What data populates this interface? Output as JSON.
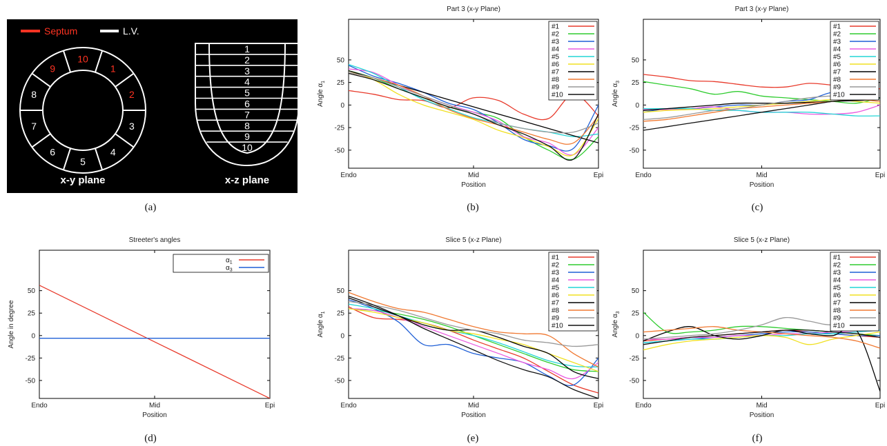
{
  "diagram": {
    "legend_septum": "Septum",
    "legend_lv": "L.V.",
    "xy_label": "x-y plane",
    "xz_label": "x-z plane",
    "ring_numbers": [
      "1",
      "2",
      "3",
      "4",
      "5",
      "6",
      "7",
      "8",
      "9",
      "10"
    ],
    "slice_numbers": [
      "1",
      "2",
      "3",
      "4",
      "5",
      "6",
      "7",
      "8",
      "9",
      "10"
    ],
    "septum_color": "#ff3322",
    "lv_color": "#ffffff"
  },
  "captions": [
    "(a)",
    "(b)",
    "(c)",
    "(d)",
    "(e)",
    "(f)"
  ],
  "colors": {
    "#1": "#e8392a",
    "#2": "#2ecc2e",
    "#3": "#1f5fd6",
    "#4": "#ea5ae0",
    "#5": "#22d6d6",
    "#6": "#f0e020",
    "#7": "#000000",
    "#8": "#f07830",
    "#9": "#999999",
    "#10": "#111111"
  },
  "chart_data": [
    {
      "id": "b",
      "type": "line",
      "title": "Part 3 (x-y Plane)",
      "xlabel": "Position",
      "ylabel": "Angle α1",
      "ylabel_main": "Angle α",
      "ylabel_sub": "1",
      "x_ticks": [
        "Endo",
        "Mid",
        "Epi"
      ],
      "y_ticks": [
        50,
        25,
        0,
        -25,
        -50
      ],
      "ylim": [
        -70,
        95
      ],
      "x": [
        0,
        0.1,
        0.2,
        0.3,
        0.4,
        0.5,
        0.6,
        0.7,
        0.8,
        0.9,
        1.0
      ],
      "series": [
        {
          "name": "#1",
          "values": [
            16,
            12,
            6,
            5,
            -3,
            8,
            5,
            -10,
            -15,
            12,
            -12
          ]
        },
        {
          "name": "#2",
          "values": [
            38,
            30,
            18,
            8,
            -2,
            -8,
            -15,
            -35,
            -50,
            -60,
            -35
          ]
        },
        {
          "name": "#3",
          "values": [
            44,
            32,
            24,
            14,
            2,
            -5,
            -20,
            -38,
            -45,
            -48,
            0
          ]
        },
        {
          "name": "#4",
          "values": [
            40,
            36,
            22,
            10,
            0,
            -8,
            -18,
            -35,
            -42,
            -55,
            -25
          ]
        },
        {
          "name": "#5",
          "values": [
            45,
            35,
            20,
            6,
            -4,
            -14,
            -20,
            -26,
            -30,
            -35,
            -32
          ]
        },
        {
          "name": "#6",
          "values": [
            38,
            28,
            12,
            0,
            -8,
            -16,
            -28,
            -36,
            -46,
            -55,
            -15
          ]
        },
        {
          "name": "#7",
          "values": [
            38,
            30,
            22,
            14,
            6,
            -2,
            -10,
            -18,
            -26,
            -34,
            -42
          ]
        },
        {
          "name": "#8",
          "values": [
            36,
            30,
            22,
            10,
            -5,
            -15,
            -22,
            -30,
            -38,
            -42,
            -12
          ]
        },
        {
          "name": "#9",
          "values": [
            36,
            30,
            20,
            10,
            0,
            -10,
            -20,
            -26,
            -30,
            -30,
            -20
          ]
        },
        {
          "name": "#10",
          "values": [
            35,
            28,
            18,
            8,
            -2,
            -10,
            -22,
            -32,
            -45,
            -60,
            -10
          ]
        }
      ],
      "legend": [
        "#1",
        "#2",
        "#3",
        "#4",
        "#5",
        "#6",
        "#7",
        "#8",
        "#9",
        "#10"
      ]
    },
    {
      "id": "c",
      "type": "line",
      "title": "Part 3 (x-y Plane)",
      "xlabel": "Position",
      "ylabel": "Angle α3",
      "ylabel_main": "Angle α",
      "ylabel_sub": "3",
      "x_ticks": [
        "Endo",
        "Mid",
        "Epi"
      ],
      "y_ticks": [
        50,
        25,
        0,
        -25,
        -50
      ],
      "ylim": [
        -70,
        95
      ],
      "x": [
        0,
        0.1,
        0.2,
        0.3,
        0.4,
        0.5,
        0.6,
        0.7,
        0.8,
        0.9,
        1.0
      ],
      "series": [
        {
          "name": "#1",
          "values": [
            34,
            31,
            27,
            26,
            23,
            20,
            20,
            24,
            22,
            20,
            18
          ]
        },
        {
          "name": "#2",
          "values": [
            26,
            22,
            18,
            12,
            15,
            10,
            8,
            6,
            4,
            2,
            8
          ]
        },
        {
          "name": "#3",
          "values": [
            -8,
            -4,
            -4,
            -2,
            0,
            0,
            4,
            6,
            14,
            10,
            8
          ]
        },
        {
          "name": "#4",
          "values": [
            -5,
            -5,
            -4,
            -2,
            -6,
            -8,
            -8,
            -10,
            -10,
            -8,
            0
          ]
        },
        {
          "name": "#5",
          "values": [
            -4,
            -4,
            -4,
            -6,
            -6,
            -8,
            -8,
            -8,
            -10,
            -12,
            -12
          ]
        },
        {
          "name": "#6",
          "values": [
            -8,
            -6,
            -5,
            -4,
            -2,
            0,
            2,
            4,
            6,
            4,
            2
          ]
        },
        {
          "name": "#7",
          "values": [
            -6,
            -4,
            -2,
            0,
            2,
            2,
            2,
            3,
            4,
            5,
            6
          ]
        },
        {
          "name": "#8",
          "values": [
            -18,
            -16,
            -12,
            -8,
            -4,
            -2,
            0,
            2,
            4,
            6,
            4
          ]
        },
        {
          "name": "#9",
          "values": [
            -16,
            -14,
            -10,
            -6,
            -4,
            0,
            4,
            8,
            10,
            8,
            6
          ]
        },
        {
          "name": "#10",
          "values": [
            -28,
            -24,
            -20,
            -16,
            -12,
            -8,
            -4,
            0,
            4,
            6,
            8
          ]
        }
      ],
      "legend": [
        "#1",
        "#2",
        "#3",
        "#4",
        "#5",
        "#6",
        "#7",
        "#8",
        "#9",
        "#10"
      ]
    },
    {
      "id": "d",
      "type": "line",
      "title": "Streeter's angles",
      "xlabel": "Position",
      "ylabel": "Angle in degree",
      "x_ticks": [
        "Endo",
        "Mid",
        "Epi"
      ],
      "y_ticks": [
        50,
        25,
        0,
        -25,
        -50
      ],
      "ylim": [
        -70,
        95
      ],
      "x": [
        0,
        1.0
      ],
      "series": [
        {
          "name": "α1",
          "values": [
            56,
            -70
          ]
        },
        {
          "name": "α3",
          "values": [
            -3,
            -3
          ]
        }
      ],
      "legend": [
        "α1",
        "α3"
      ]
    },
    {
      "id": "e",
      "type": "line",
      "title": "Slice 5 (x-z Plane)",
      "xlabel": "Position",
      "ylabel": "Angle α1",
      "ylabel_main": "Angle α",
      "ylabel_sub": "1",
      "x_ticks": [
        "Endo",
        "Mid",
        "Epi"
      ],
      "y_ticks": [
        50,
        25,
        0,
        -25,
        -50
      ],
      "ylim": [
        -70,
        95
      ],
      "x": [
        0,
        0.1,
        0.2,
        0.3,
        0.4,
        0.5,
        0.6,
        0.7,
        0.8,
        0.9,
        1.0
      ],
      "series": [
        {
          "name": "#1",
          "values": [
            32,
            20,
            18,
            14,
            6,
            -5,
            -15,
            -25,
            -40,
            -55,
            -64
          ]
        },
        {
          "name": "#2",
          "values": [
            30,
            28,
            24,
            18,
            10,
            0,
            -10,
            -20,
            -30,
            -38,
            -40
          ]
        },
        {
          "name": "#3",
          "values": [
            40,
            30,
            15,
            -10,
            -10,
            -20,
            -25,
            -30,
            -45,
            -55,
            -25
          ]
        },
        {
          "name": "#4",
          "values": [
            30,
            28,
            20,
            10,
            0,
            -10,
            -20,
            -30,
            -38,
            -48,
            -30
          ]
        },
        {
          "name": "#5",
          "values": [
            35,
            30,
            22,
            14,
            6,
            0,
            -8,
            -18,
            -28,
            -34,
            -35
          ]
        },
        {
          "name": "#6",
          "values": [
            30,
            26,
            20,
            14,
            6,
            2,
            -4,
            -10,
            -20,
            -30,
            -40
          ]
        },
        {
          "name": "#7",
          "values": [
            42,
            32,
            22,
            12,
            6,
            6,
            -2,
            -12,
            -20,
            -40,
            -48
          ]
        },
        {
          "name": "#8",
          "values": [
            48,
            38,
            30,
            26,
            18,
            10,
            4,
            2,
            0,
            -20,
            -35
          ]
        },
        {
          "name": "#9",
          "values": [
            38,
            34,
            28,
            20,
            12,
            6,
            2,
            -5,
            -8,
            -12,
            -10
          ]
        },
        {
          "name": "#10",
          "values": [
            44,
            34,
            22,
            8,
            -4,
            -16,
            -28,
            -38,
            -46,
            -60,
            -70
          ]
        }
      ],
      "legend": [
        "#1",
        "#2",
        "#3",
        "#4",
        "#5",
        "#6",
        "#7",
        "#8",
        "#9",
        "#10"
      ]
    },
    {
      "id": "f",
      "type": "line",
      "title": "Slice 5 (x-z Plane)",
      "xlabel": "Position",
      "ylabel": "Angle α3",
      "ylabel_main": "Angle α",
      "ylabel_sub": "3",
      "x_ticks": [
        "Endo",
        "Mid",
        "Epi"
      ],
      "y_ticks": [
        50,
        25,
        0,
        -25,
        -50
      ],
      "ylim": [
        -70,
        95
      ],
      "x": [
        0,
        0.1,
        0.2,
        0.3,
        0.4,
        0.5,
        0.6,
        0.7,
        0.8,
        0.9,
        1.0
      ],
      "series": [
        {
          "name": "#1",
          "values": [
            -6,
            -4,
            -2,
            0,
            2,
            4,
            6,
            4,
            2,
            0,
            -2
          ]
        },
        {
          "name": "#2",
          "values": [
            26,
            4,
            4,
            6,
            10,
            10,
            8,
            6,
            4,
            2,
            0
          ]
        },
        {
          "name": "#3",
          "values": [
            -8,
            -6,
            -4,
            -2,
            0,
            2,
            4,
            4,
            2,
            0,
            0
          ]
        },
        {
          "name": "#4",
          "values": [
            -4,
            -4,
            -2,
            -2,
            0,
            0,
            2,
            2,
            4,
            4,
            6
          ]
        },
        {
          "name": "#5",
          "values": [
            -8,
            -6,
            -4,
            -4,
            -2,
            0,
            0,
            2,
            2,
            4,
            6
          ]
        },
        {
          "name": "#6",
          "values": [
            -16,
            -10,
            -6,
            -4,
            -2,
            0,
            -2,
            -10,
            -4,
            0,
            4
          ]
        },
        {
          "name": "#7",
          "values": [
            -6,
            4,
            10,
            0,
            -4,
            0,
            6,
            2,
            0,
            6,
            -62
          ]
        },
        {
          "name": "#8",
          "values": [
            4,
            6,
            8,
            10,
            6,
            4,
            2,
            0,
            -2,
            -6,
            -14
          ]
        },
        {
          "name": "#9",
          "values": [
            -4,
            -2,
            0,
            2,
            6,
            12,
            20,
            16,
            12,
            20,
            26
          ]
        },
        {
          "name": "#10",
          "values": [
            -10,
            -6,
            -2,
            0,
            2,
            4,
            6,
            6,
            4,
            2,
            -2
          ]
        }
      ],
      "legend": [
        "#1",
        "#2",
        "#3",
        "#4",
        "#5",
        "#6",
        "#7",
        "#8",
        "#9",
        "#10"
      ]
    }
  ]
}
